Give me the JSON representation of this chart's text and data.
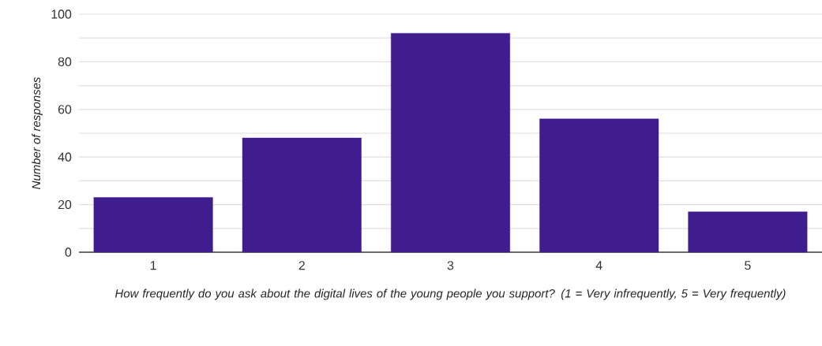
{
  "chart_data": {
    "type": "bar",
    "xlabel": "How frequently do you ask about the digital lives of the young people you support? (1 = Very infrequently, 5 = Very frequently)",
    "ylabel": "Number of responses",
    "categories": [
      "1",
      "2",
      "3",
      "4",
      "5"
    ],
    "values": [
      23,
      48,
      92,
      56,
      17
    ],
    "color": "#3f1d8e",
    "ylim": [
      0,
      100
    ],
    "yticks": [
      0,
      {
        "value": 10,
        "label": null
      },
      20,
      {
        "value": 30,
        "label": null
      },
      40,
      {
        "value": 50,
        "label": null
      },
      60,
      {
        "value": 70,
        "label": null
      },
      80,
      {
        "value": 90,
        "label": null
      },
      100
    ],
    "grid": "y"
  }
}
